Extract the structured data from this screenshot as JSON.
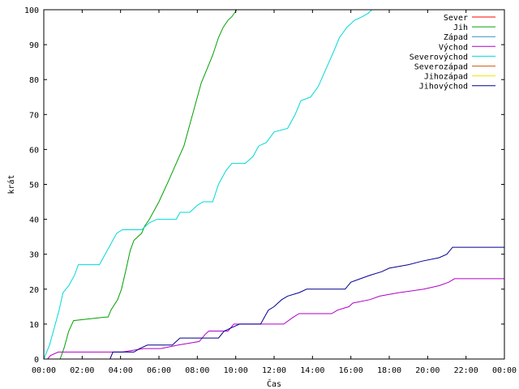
{
  "chart_data": {
    "type": "line",
    "xlabel": "Čas",
    "ylabel": "krát",
    "xlim": [
      0,
      24
    ],
    "ylim": [
      0,
      100
    ],
    "grid": false,
    "legend_position": "top-right",
    "x_ticks": [
      {
        "value": 0,
        "label": "00:00"
      },
      {
        "value": 2,
        "label": "02:00"
      },
      {
        "value": 4,
        "label": "04:00"
      },
      {
        "value": 6,
        "label": "06:00"
      },
      {
        "value": 8,
        "label": "08:00"
      },
      {
        "value": 10,
        "label": "10:00"
      },
      {
        "value": 12,
        "label": "12:00"
      },
      {
        "value": 14,
        "label": "14:00"
      },
      {
        "value": 16,
        "label": "16:00"
      },
      {
        "value": 18,
        "label": "18:00"
      },
      {
        "value": 20,
        "label": "20:00"
      },
      {
        "value": 22,
        "label": "22:00"
      },
      {
        "value": 24,
        "label": "00:00"
      }
    ],
    "y_ticks": [
      {
        "value": 0,
        "label": "0"
      },
      {
        "value": 10,
        "label": "10"
      },
      {
        "value": 20,
        "label": "20"
      },
      {
        "value": 30,
        "label": "30"
      },
      {
        "value": 40,
        "label": "40"
      },
      {
        "value": 50,
        "label": "50"
      },
      {
        "value": 60,
        "label": "60"
      },
      {
        "value": 70,
        "label": "70"
      },
      {
        "value": 80,
        "label": "80"
      },
      {
        "value": 90,
        "label": "90"
      },
      {
        "value": 100,
        "label": "100"
      }
    ],
    "series": [
      {
        "name": "Sever",
        "color": "#ff0000",
        "points": []
      },
      {
        "name": "Jih",
        "color": "#00a000",
        "points": [
          [
            0.85,
            0
          ],
          [
            1.05,
            3
          ],
          [
            1.3,
            8
          ],
          [
            1.55,
            11
          ],
          [
            2.4,
            11.5
          ],
          [
            3.2,
            12
          ],
          [
            3.35,
            12
          ],
          [
            3.5,
            14
          ],
          [
            3.85,
            17
          ],
          [
            4.05,
            20
          ],
          [
            4.3,
            26
          ],
          [
            4.5,
            31
          ],
          [
            4.7,
            34
          ],
          [
            5.1,
            36
          ],
          [
            5.25,
            38
          ],
          [
            5.5,
            40
          ],
          [
            6.0,
            45
          ],
          [
            6.5,
            51
          ],
          [
            6.9,
            56
          ],
          [
            7.3,
            61
          ],
          [
            7.6,
            67
          ],
          [
            7.9,
            73
          ],
          [
            8.2,
            79
          ],
          [
            8.5,
            83
          ],
          [
            8.8,
            87
          ],
          [
            9.1,
            92
          ],
          [
            9.35,
            95
          ],
          [
            9.6,
            97
          ],
          [
            9.8,
            98
          ],
          [
            10.05,
            100
          ]
        ]
      },
      {
        "name": "Západ",
        "color": "#3090c0",
        "points": []
      },
      {
        "name": "Východ",
        "color": "#b000c8",
        "points": [
          [
            0.2,
            0
          ],
          [
            0.35,
            1
          ],
          [
            0.75,
            2
          ],
          [
            3.6,
            2
          ],
          [
            4.1,
            2
          ],
          [
            5.2,
            3
          ],
          [
            6.1,
            3
          ],
          [
            7.0,
            4
          ],
          [
            8.1,
            5
          ],
          [
            8.4,
            7
          ],
          [
            8.6,
            8
          ],
          [
            9.6,
            8
          ],
          [
            9.9,
            10
          ],
          [
            12.5,
            10
          ],
          [
            13.0,
            12
          ],
          [
            13.3,
            13
          ],
          [
            15.0,
            13
          ],
          [
            15.3,
            14
          ],
          [
            15.9,
            15
          ],
          [
            16.1,
            16
          ],
          [
            17.0,
            17
          ],
          [
            17.5,
            18
          ],
          [
            18.5,
            19
          ],
          [
            19.8,
            20
          ],
          [
            20.6,
            21
          ],
          [
            21.1,
            22
          ],
          [
            21.4,
            23
          ],
          [
            24.0,
            23
          ]
        ]
      },
      {
        "name": "Severovýchod",
        "color": "#00d8d8",
        "points": [
          [
            0,
            0
          ],
          [
            0.3,
            4
          ],
          [
            0.6,
            10
          ],
          [
            0.8,
            14
          ],
          [
            1.0,
            19
          ],
          [
            1.3,
            21
          ],
          [
            1.6,
            24
          ],
          [
            1.8,
            27
          ],
          [
            2.9,
            27
          ],
          [
            3.2,
            30
          ],
          [
            3.5,
            33
          ],
          [
            3.8,
            36
          ],
          [
            4.1,
            37
          ],
          [
            5.1,
            37
          ],
          [
            5.5,
            39
          ],
          [
            5.9,
            40
          ],
          [
            6.9,
            40
          ],
          [
            7.1,
            42
          ],
          [
            7.6,
            42
          ],
          [
            8.0,
            44
          ],
          [
            8.3,
            45
          ],
          [
            8.8,
            45
          ],
          [
            9.1,
            50
          ],
          [
            9.5,
            54
          ],
          [
            9.8,
            56
          ],
          [
            10.5,
            56
          ],
          [
            10.9,
            58
          ],
          [
            11.2,
            61
          ],
          [
            11.6,
            62
          ],
          [
            12.0,
            65
          ],
          [
            12.7,
            66
          ],
          [
            13.1,
            70
          ],
          [
            13.4,
            74
          ],
          [
            13.9,
            75
          ],
          [
            14.3,
            78
          ],
          [
            14.7,
            83
          ],
          [
            15.1,
            88
          ],
          [
            15.4,
            92
          ],
          [
            15.8,
            95
          ],
          [
            16.2,
            97
          ],
          [
            16.6,
            98
          ],
          [
            16.9,
            99
          ],
          [
            17.1,
            100
          ]
        ]
      },
      {
        "name": "Severozápad",
        "color": "#c86420",
        "points": []
      },
      {
        "name": "Jihozápad",
        "color": "#e8e800",
        "points": []
      },
      {
        "name": "Jihovýchod",
        "color": "#000090",
        "points": [
          [
            3.45,
            0
          ],
          [
            3.6,
            2
          ],
          [
            4.7,
            2
          ],
          [
            5.0,
            3
          ],
          [
            5.4,
            4
          ],
          [
            6.7,
            4
          ],
          [
            6.9,
            5
          ],
          [
            7.1,
            6
          ],
          [
            9.1,
            6
          ],
          [
            9.4,
            8
          ],
          [
            9.8,
            9
          ],
          [
            10.2,
            10
          ],
          [
            11.3,
            10
          ],
          [
            11.7,
            14
          ],
          [
            12.0,
            15
          ],
          [
            12.2,
            16
          ],
          [
            12.4,
            17
          ],
          [
            12.7,
            18
          ],
          [
            13.3,
            19
          ],
          [
            13.7,
            20
          ],
          [
            15.7,
            20
          ],
          [
            16.0,
            22
          ],
          [
            16.5,
            23
          ],
          [
            17.0,
            24
          ],
          [
            17.6,
            25
          ],
          [
            18.0,
            26
          ],
          [
            19.0,
            27
          ],
          [
            19.7,
            28
          ],
          [
            20.6,
            29
          ],
          [
            21.0,
            30
          ],
          [
            21.3,
            32
          ],
          [
            24.0,
            32
          ]
        ]
      }
    ]
  }
}
